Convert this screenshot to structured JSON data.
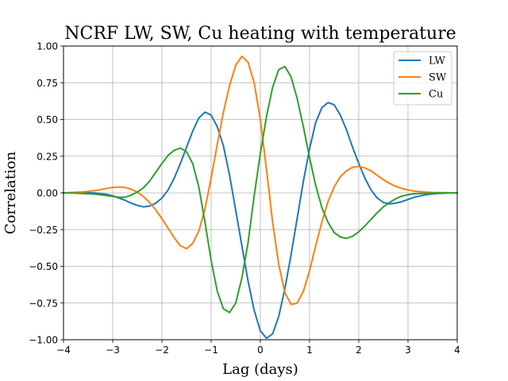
{
  "chart_data": {
    "type": "line",
    "title": "NCRF LW, SW, Cu heating with temperature",
    "xlabel": "Lag (days)",
    "ylabel": "Correlation",
    "xlim": [
      -4,
      4
    ],
    "ylim": [
      -1.0,
      1.0
    ],
    "xticks": [
      -4,
      -3,
      -2,
      -1,
      0,
      1,
      2,
      3,
      4
    ],
    "xtick_labels": [
      "−4",
      "−3",
      "−2",
      "−1",
      "0",
      "1",
      "2",
      "3",
      "4"
    ],
    "yticks": [
      -1.0,
      -0.75,
      -0.5,
      -0.25,
      0.0,
      0.25,
      0.5,
      0.75,
      1.0
    ],
    "ytick_labels": [
      "−1.00",
      "−0.75",
      "−0.50",
      "−0.25",
      "0.00",
      "0.25",
      "0.50",
      "0.75",
      "1.00"
    ],
    "grid": true,
    "legend_position": "top-right",
    "x": [
      -4.0,
      -3.875,
      -3.75,
      -3.625,
      -3.5,
      -3.375,
      -3.25,
      -3.125,
      -3.0,
      -2.875,
      -2.75,
      -2.625,
      -2.5,
      -2.375,
      -2.25,
      -2.125,
      -2.0,
      -1.875,
      -1.75,
      -1.625,
      -1.5,
      -1.375,
      -1.25,
      -1.125,
      -1.0,
      -0.875,
      -0.75,
      -0.625,
      -0.5,
      -0.375,
      -0.25,
      -0.125,
      0.0,
      0.125,
      0.25,
      0.375,
      0.5,
      0.625,
      0.75,
      0.875,
      1.0,
      1.125,
      1.25,
      1.375,
      1.5,
      1.625,
      1.75,
      1.875,
      2.0,
      2.125,
      2.25,
      2.375,
      2.5,
      2.625,
      2.75,
      2.875,
      3.0,
      3.125,
      3.25,
      3.375,
      3.5,
      3.625,
      3.75,
      3.875,
      4.0
    ],
    "series": [
      {
        "name": "LW",
        "color": "#1f77b4",
        "values": [
          0.0,
          0.0,
          0.0,
          0.0,
          0.0,
          0.0,
          -0.005,
          -0.01,
          -0.02,
          -0.035,
          -0.05,
          -0.07,
          -0.085,
          -0.095,
          -0.09,
          -0.07,
          -0.035,
          0.02,
          0.1,
          0.2,
          0.31,
          0.42,
          0.51,
          0.55,
          0.53,
          0.45,
          0.32,
          0.12,
          -0.12,
          -0.36,
          -0.6,
          -0.8,
          -0.94,
          -0.99,
          -0.96,
          -0.84,
          -0.65,
          -0.42,
          -0.17,
          0.08,
          0.3,
          0.48,
          0.58,
          0.615,
          0.6,
          0.53,
          0.43,
          0.31,
          0.2,
          0.1,
          0.02,
          -0.035,
          -0.065,
          -0.075,
          -0.07,
          -0.06,
          -0.045,
          -0.03,
          -0.02,
          -0.012,
          -0.007,
          -0.004,
          -0.002,
          -0.001,
          0.0
        ]
      },
      {
        "name": "SW",
        "color": "#ff7f0e",
        "values": [
          0.0,
          0.002,
          0.004,
          0.006,
          0.01,
          0.015,
          0.022,
          0.03,
          0.037,
          0.04,
          0.037,
          0.025,
          0.005,
          -0.025,
          -0.065,
          -0.115,
          -0.175,
          -0.24,
          -0.305,
          -0.36,
          -0.38,
          -0.345,
          -0.26,
          -0.11,
          0.1,
          0.33,
          0.55,
          0.73,
          0.87,
          0.93,
          0.89,
          0.75,
          0.5,
          0.16,
          -0.2,
          -0.49,
          -0.68,
          -0.76,
          -0.75,
          -0.67,
          -0.53,
          -0.36,
          -0.2,
          -0.06,
          0.04,
          0.11,
          0.15,
          0.175,
          0.18,
          0.17,
          0.15,
          0.12,
          0.09,
          0.065,
          0.045,
          0.03,
          0.02,
          0.012,
          0.008,
          0.005,
          0.003,
          0.002,
          0.001,
          0.0,
          0.0
        ]
      },
      {
        "name": "Cu",
        "color": "#2ca02c",
        "values": [
          0.0,
          -0.001,
          -0.002,
          -0.004,
          -0.006,
          -0.009,
          -0.013,
          -0.018,
          -0.024,
          -0.03,
          -0.03,
          -0.015,
          0.005,
          0.035,
          0.08,
          0.14,
          0.2,
          0.255,
          0.29,
          0.305,
          0.28,
          0.2,
          0.04,
          -0.2,
          -0.46,
          -0.67,
          -0.79,
          -0.815,
          -0.75,
          -0.58,
          -0.34,
          -0.02,
          0.27,
          0.52,
          0.72,
          0.84,
          0.86,
          0.79,
          0.64,
          0.45,
          0.24,
          0.05,
          -0.1,
          -0.2,
          -0.27,
          -0.3,
          -0.31,
          -0.295,
          -0.265,
          -0.225,
          -0.18,
          -0.135,
          -0.095,
          -0.065,
          -0.04,
          -0.022,
          -0.012,
          -0.007,
          -0.004,
          -0.003,
          -0.002,
          -0.001,
          0.0,
          0.0,
          0.0
        ]
      }
    ]
  }
}
